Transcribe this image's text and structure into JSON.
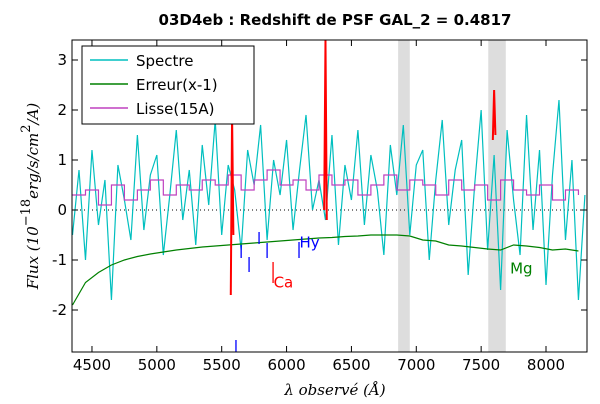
{
  "chart_data": {
    "type": "line",
    "title": "03D4eb : Redshift de PSF GAL_2 = 0.4817",
    "ylabel_parts": [
      "Flux (10",
      "−18",
      "erg/s/cm",
      "2",
      "/A)"
    ],
    "xlabel": "λ observé (Å)",
    "xlim": [
      4346,
      8316
    ],
    "ylim": [
      -2.84,
      3.4
    ],
    "xticks": [
      4500,
      5000,
      5500,
      6000,
      6500,
      7000,
      7500,
      8000
    ],
    "yticks": [
      -2,
      -1,
      0,
      1,
      2,
      3
    ],
    "legend": "upper left",
    "series": [
      {
        "name": "Spectre",
        "color": "#00bfbf",
        "step": false,
        "x": [
          4350,
          4400,
          4450,
          4500,
          4550,
          4600,
          4650,
          4700,
          4750,
          4800,
          4850,
          4900,
          4950,
          5000,
          5050,
          5100,
          5150,
          5200,
          5250,
          5300,
          5350,
          5400,
          5450,
          5500,
          5550,
          5600,
          5650,
          5700,
          5750,
          5800,
          5850,
          5900,
          5950,
          6000,
          6050,
          6100,
          6150,
          6200,
          6250,
          6300,
          6350,
          6400,
          6450,
          6500,
          6550,
          6600,
          6650,
          6700,
          6750,
          6800,
          6850,
          6900,
          6950,
          7000,
          7050,
          7100,
          7150,
          7200,
          7250,
          7300,
          7350,
          7400,
          7450,
          7500,
          7550,
          7600,
          7650,
          7700,
          7750,
          7800,
          7850,
          7900,
          7950,
          8000,
          8050,
          8100,
          8150,
          8200,
          8250,
          8300
        ],
        "values": [
          -0.5,
          0.8,
          -1.0,
          1.2,
          -0.3,
          0.6,
          -1.8,
          0.9,
          0.2,
          -0.6,
          1.5,
          -0.4,
          0.7,
          1.1,
          -0.9,
          0.3,
          1.6,
          -0.2,
          0.8,
          -0.7,
          1.3,
          0.1,
          1.8,
          -0.5,
          0.9,
          0.4,
          -0.8,
          1.2,
          0.5,
          1.7,
          -0.6,
          1.0,
          0.3,
          1.4,
          -0.4,
          0.8,
          1.9,
          0.0,
          0.6,
          -0.2,
          1.5,
          -0.7,
          0.9,
          0.2,
          1.6,
          -0.3,
          1.1,
          0.4,
          -0.9,
          1.3,
          0.3,
          1.7,
          -0.5,
          0.9,
          1.2,
          -1.0,
          0.6,
          1.8,
          -0.3,
          0.8,
          1.4,
          -1.3,
          0.5,
          2.0,
          -0.8,
          1.1,
          -1.6,
          1.6,
          0.2,
          -0.9,
          1.9,
          -0.4,
          1.2,
          -1.5,
          0.7,
          2.2,
          -0.6,
          1.0,
          -1.8,
          0.3
        ]
      },
      {
        "name": "Erreur(x-1)",
        "color": "#008000",
        "step": false,
        "x": [
          4350,
          4450,
          4550,
          4650,
          4750,
          4850,
          4950,
          5050,
          5150,
          5250,
          5350,
          5450,
          5550,
          5650,
          5750,
          5850,
          5950,
          6050,
          6150,
          6250,
          6350,
          6450,
          6550,
          6650,
          6750,
          6850,
          6950,
          7050,
          7150,
          7250,
          7350,
          7450,
          7550,
          7650,
          7750,
          7850,
          7950,
          8050,
          8150,
          8250
        ],
        "values": [
          -1.9,
          -1.45,
          -1.25,
          -1.1,
          -1.0,
          -0.93,
          -0.88,
          -0.84,
          -0.8,
          -0.77,
          -0.74,
          -0.72,
          -0.7,
          -0.68,
          -0.66,
          -0.64,
          -0.62,
          -0.6,
          -0.58,
          -0.56,
          -0.55,
          -0.53,
          -0.52,
          -0.5,
          -0.5,
          -0.5,
          -0.52,
          -0.6,
          -0.62,
          -0.7,
          -0.72,
          -0.75,
          -0.78,
          -0.8,
          -0.7,
          -0.72,
          -0.75,
          -0.8,
          -0.78,
          -0.82
        ]
      },
      {
        "name": "Lisse(15A)",
        "color": "#bf40bf",
        "step": true,
        "x": [
          4350,
          4450,
          4550,
          4650,
          4750,
          4850,
          4950,
          5050,
          5150,
          5250,
          5350,
          5450,
          5550,
          5650,
          5750,
          5850,
          5950,
          6050,
          6150,
          6250,
          6350,
          6450,
          6550,
          6650,
          6750,
          6850,
          6950,
          7050,
          7150,
          7250,
          7350,
          7450,
          7550,
          7650,
          7750,
          7850,
          7950,
          8050,
          8150,
          8250
        ],
        "values": [
          0.3,
          0.4,
          0.1,
          0.5,
          0.2,
          0.4,
          0.6,
          0.3,
          0.5,
          0.4,
          0.6,
          0.5,
          0.7,
          0.4,
          0.6,
          0.8,
          0.5,
          0.6,
          0.4,
          0.7,
          0.5,
          0.6,
          0.3,
          0.5,
          0.7,
          0.4,
          0.6,
          0.5,
          0.3,
          0.6,
          0.4,
          0.5,
          0.2,
          0.6,
          0.4,
          0.3,
          0.5,
          0.2,
          0.4,
          0.3
        ]
      }
    ],
    "highlights": {
      "color": "#ff0000",
      "segments": [
        {
          "x": [
            5570,
            5580,
            5590
          ],
          "values": [
            -1.7,
            1.9,
            -0.5
          ]
        },
        {
          "x": [
            6290,
            6300,
            6310
          ],
          "values": [
            0,
            3.4,
            -0.2
          ]
        },
        {
          "x": [
            7590,
            7600,
            7610
          ],
          "values": [
            1.4,
            2.4,
            1.5
          ]
        }
      ]
    },
    "bands": [
      [
        6860,
        6950
      ],
      [
        7555,
        7690
      ]
    ],
    "markers": [
      {
        "x": 5610,
        "y": [
          -2.6,
          -2.84
        ],
        "color": "#0000ff"
      },
      {
        "x": 5650,
        "y": [
          -0.7,
          -0.96
        ],
        "color": "#0000ff"
      },
      {
        "x": 5711,
        "y": [
          -0.94,
          -1.24
        ],
        "color": "#0000ff"
      },
      {
        "x": 5788,
        "y": [
          -0.44,
          -0.68
        ],
        "color": "#0000ff"
      },
      {
        "x": 5850,
        "y": [
          -0.66,
          -0.96
        ],
        "color": "#0000ff"
      },
      {
        "x": 6096,
        "y": [
          -0.64,
          -0.96
        ],
        "color": "#0000ff"
      },
      {
        "x": 5896,
        "y": [
          -1.04,
          -1.46
        ],
        "color": "#ff0000"
      }
    ],
    "annotations": [
      {
        "text": "Ca",
        "x": 5900,
        "y": -1.55,
        "color": "#ff0000"
      },
      {
        "text": "Hy",
        "x": 6100,
        "y": -0.75,
        "color": "#0000ff"
      },
      {
        "text": "Mg",
        "x": 7723,
        "y": -1.27,
        "color": "#008000"
      }
    ]
  }
}
